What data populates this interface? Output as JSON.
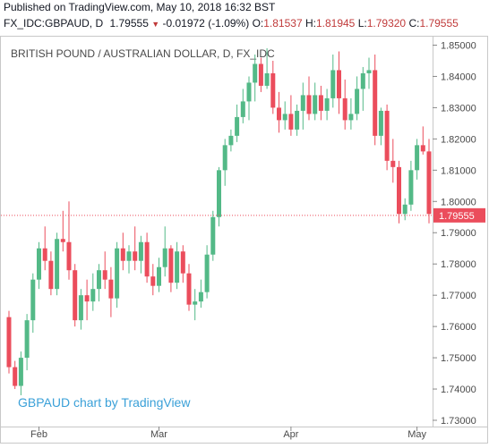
{
  "header": {
    "published": "Published on TradingView.com, May 10, 2018 16:32 BST"
  },
  "symbol_bar": {
    "symbol": "FX_IDC:GBPAUD, D",
    "last": "1.79555",
    "change": "-0.01972 (-1.09%)",
    "o_label": "O:",
    "o_value": "1.81537",
    "h_label": "H:",
    "h_value": "1.81945",
    "l_label": "L:",
    "l_value": "1.79320",
    "c_label": "C:",
    "c_value": "1.79555"
  },
  "chart_data": {
    "type": "candlestick",
    "title": "BRITISH POUND / AUSTRALIAN DOLLAR, D, FX_IDC",
    "watermark": "GBPAUD chart by TradingView",
    "y_ticks": [
      "1.85000",
      "1.84000",
      "1.83000",
      "1.82000",
      "1.81000",
      "1.80000",
      "1.79000",
      "1.78000",
      "1.77000",
      "1.76000",
      "1.75000",
      "1.74000",
      "1.73000"
    ],
    "ylim": [
      1.728,
      1.853
    ],
    "x_ticks": [
      {
        "label": "Feb",
        "index": 5
      },
      {
        "label": "Mar",
        "index": 25
      },
      {
        "label": "Apr",
        "index": 47
      },
      {
        "label": "May",
        "index": 68
      }
    ],
    "last_price": 1.79555,
    "last_price_label": "1.79555",
    "up_color": "#53b987",
    "down_color": "#eb4d5c",
    "candles": [
      [
        1.763,
        1.765,
        1.745,
        1.747
      ],
      [
        1.747,
        1.749,
        1.74,
        1.741
      ],
      [
        1.741,
        1.752,
        1.738,
        1.75
      ],
      [
        1.75,
        1.764,
        1.746,
        1.762
      ],
      [
        1.762,
        1.777,
        1.758,
        1.775
      ],
      [
        1.775,
        1.787,
        1.772,
        1.785
      ],
      [
        1.785,
        1.792,
        1.778,
        1.781
      ],
      [
        1.781,
        1.784,
        1.77,
        1.772
      ],
      [
        1.772,
        1.79,
        1.77,
        1.788
      ],
      [
        1.788,
        1.797,
        1.784,
        1.787
      ],
      [
        1.787,
        1.8,
        1.775,
        1.778
      ],
      [
        1.778,
        1.78,
        1.76,
        1.762
      ],
      [
        1.762,
        1.772,
        1.759,
        1.77
      ],
      [
        1.77,
        1.775,
        1.762,
        1.768
      ],
      [
        1.768,
        1.777,
        1.765,
        1.772
      ],
      [
        1.772,
        1.78,
        1.768,
        1.778
      ],
      [
        1.778,
        1.784,
        1.772,
        1.775
      ],
      [
        1.775,
        1.779,
        1.763,
        1.769
      ],
      [
        1.769,
        1.787,
        1.766,
        1.785
      ],
      [
        1.785,
        1.79,
        1.778,
        1.781
      ],
      [
        1.781,
        1.786,
        1.777,
        1.784
      ],
      [
        1.784,
        1.792,
        1.778,
        1.781
      ],
      [
        1.781,
        1.789,
        1.777,
        1.787
      ],
      [
        1.787,
        1.79,
        1.774,
        1.776
      ],
      [
        1.776,
        1.78,
        1.77,
        1.773
      ],
      [
        1.773,
        1.782,
        1.771,
        1.779
      ],
      [
        1.779,
        1.792,
        1.776,
        1.785
      ],
      [
        1.785,
        1.786,
        1.771,
        1.774
      ],
      [
        1.774,
        1.787,
        1.772,
        1.784
      ],
      [
        1.784,
        1.786,
        1.774,
        1.777
      ],
      [
        1.777,
        1.78,
        1.765,
        1.767
      ],
      [
        1.767,
        1.772,
        1.762,
        1.768
      ],
      [
        1.768,
        1.775,
        1.766,
        1.771
      ],
      [
        1.771,
        1.786,
        1.769,
        1.783
      ],
      [
        1.783,
        1.797,
        1.781,
        1.795
      ],
      [
        1.795,
        1.811,
        1.792,
        1.81
      ],
      [
        1.81,
        1.82,
        1.805,
        1.818
      ],
      [
        1.818,
        1.823,
        1.816,
        1.821
      ],
      [
        1.821,
        1.831,
        1.819,
        1.827
      ],
      [
        1.827,
        1.836,
        1.825,
        1.832
      ],
      [
        1.832,
        1.84,
        1.826,
        1.838
      ],
      [
        1.838,
        1.847,
        1.832,
        1.844
      ],
      [
        1.844,
        1.846,
        1.835,
        1.837
      ],
      [
        1.837,
        1.849,
        1.836,
        1.841
      ],
      [
        1.841,
        1.845,
        1.828,
        1.83
      ],
      [
        1.83,
        1.835,
        1.822,
        1.826
      ],
      [
        1.826,
        1.832,
        1.823,
        1.828
      ],
      [
        1.828,
        1.834,
        1.821,
        1.823
      ],
      [
        1.823,
        1.831,
        1.821,
        1.829
      ],
      [
        1.829,
        1.838,
        1.823,
        1.834
      ],
      [
        1.834,
        1.84,
        1.826,
        1.828
      ],
      [
        1.828,
        1.838,
        1.826,
        1.834
      ],
      [
        1.834,
        1.837,
        1.826,
        1.829
      ],
      [
        1.829,
        1.836,
        1.826,
        1.833
      ],
      [
        1.833,
        1.847,
        1.83,
        1.842
      ],
      [
        1.842,
        1.848,
        1.828,
        1.833
      ],
      [
        1.833,
        1.839,
        1.823,
        1.826
      ],
      [
        1.826,
        1.833,
        1.823,
        1.828
      ],
      [
        1.828,
        1.84,
        1.826,
        1.836
      ],
      [
        1.836,
        1.843,
        1.829,
        1.841
      ],
      [
        1.841,
        1.846,
        1.836,
        1.842
      ],
      [
        1.842,
        1.847,
        1.818,
        1.821
      ],
      [
        1.821,
        1.83,
        1.818,
        1.829
      ],
      [
        1.829,
        1.831,
        1.81,
        1.813
      ],
      [
        1.813,
        1.82,
        1.806,
        1.811
      ],
      [
        1.811,
        1.813,
        1.793,
        1.796
      ],
      [
        1.796,
        1.801,
        1.794,
        1.799
      ],
      [
        1.799,
        1.813,
        1.797,
        1.81
      ],
      [
        1.81,
        1.82,
        1.807,
        1.818
      ],
      [
        1.818,
        1.824,
        1.815,
        1.816
      ],
      [
        1.816,
        1.82,
        1.793,
        1.796
      ]
    ]
  }
}
